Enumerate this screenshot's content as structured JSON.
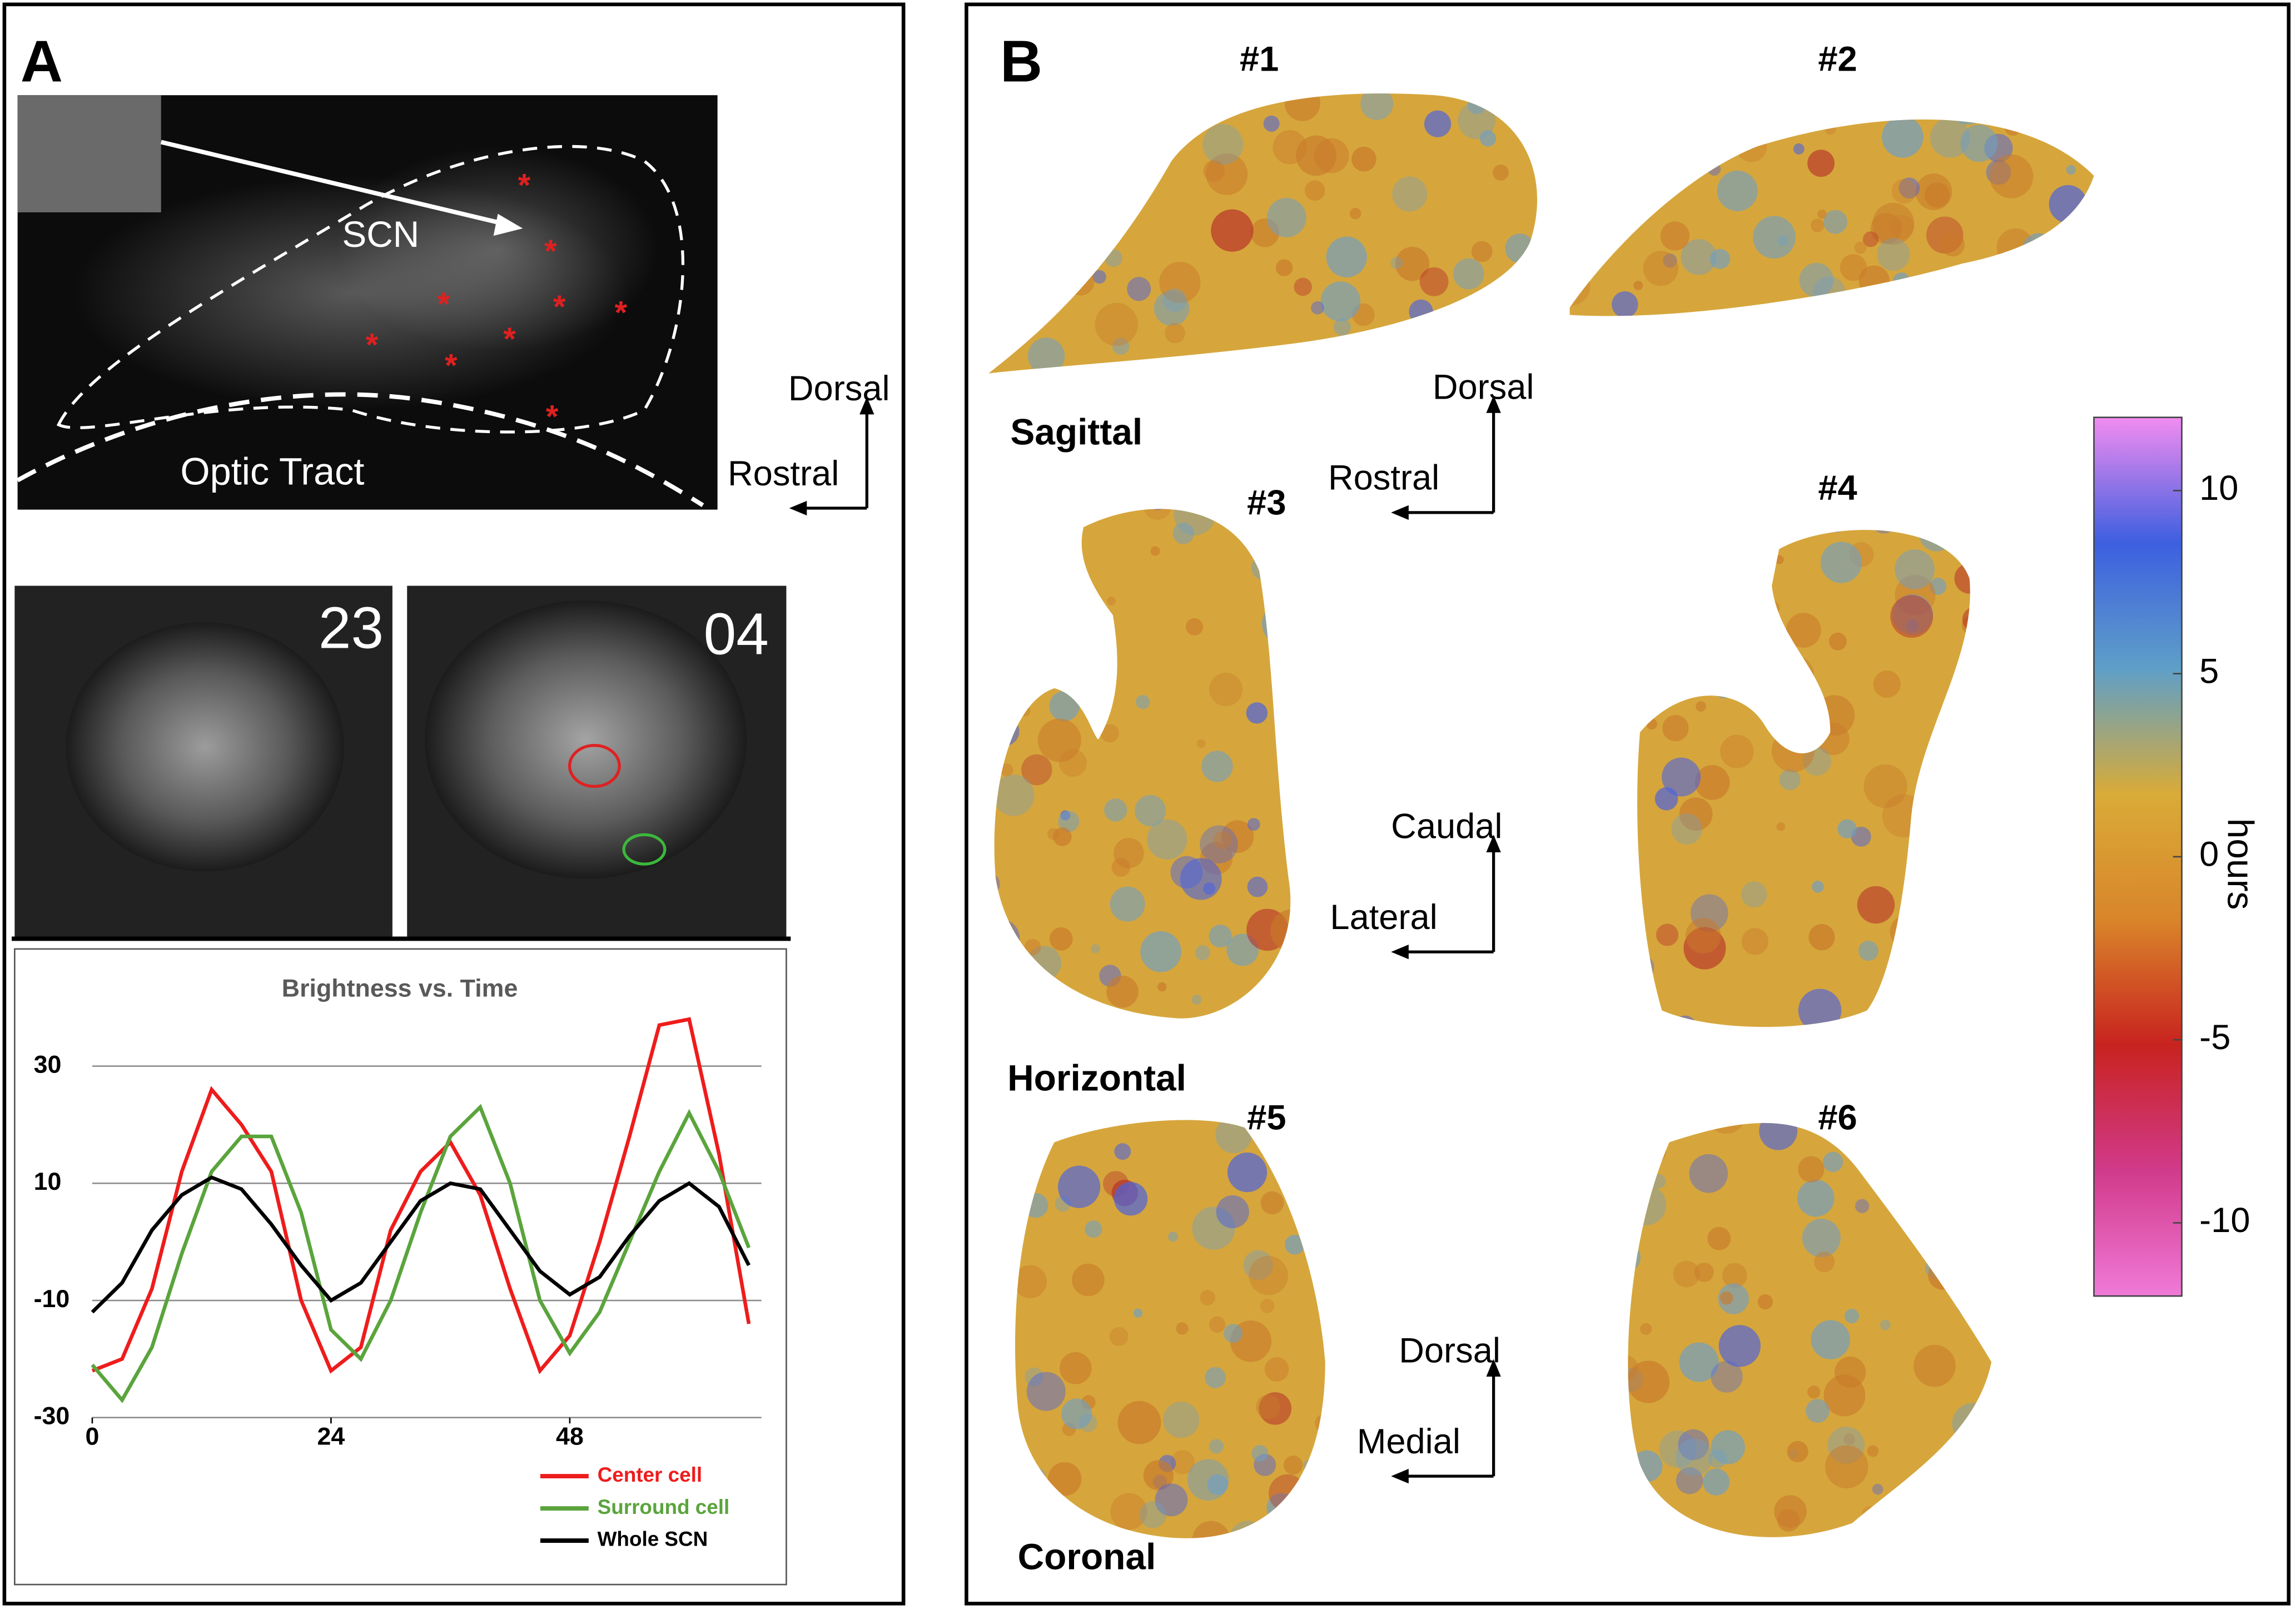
{
  "panel_a": {
    "label": "A",
    "image_labels": {
      "region": "SCN",
      "tract": "Optic Tract",
      "up": "Dorsal",
      "left": "Rostral"
    },
    "frames": [
      "23",
      "04"
    ]
  },
  "panel_b": {
    "label": "B",
    "maps": [
      "#1",
      "#2",
      "#3",
      "#4",
      "#5",
      "#6"
    ],
    "planes": [
      "Sagittal",
      "Horizontal",
      "Coronal"
    ],
    "orientations": [
      {
        "up": "Dorsal",
        "left": "Rostral"
      },
      {
        "up": "Caudal",
        "left": "Lateral"
      },
      {
        "up": "Dorsal",
        "left": "Medial"
      }
    ]
  },
  "chart_data": [
    {
      "type": "line",
      "title": "Brightness vs. Time",
      "x": [
        0,
        3,
        6,
        9,
        12,
        15,
        18,
        21,
        24,
        27,
        30,
        33,
        36,
        39,
        42,
        45,
        48,
        51,
        54,
        57,
        60,
        63,
        66
      ],
      "xlim": [
        0,
        68
      ],
      "xticks": [
        0,
        24,
        48
      ],
      "ylim": [
        -30,
        40
      ],
      "yticks": [
        -30,
        -10,
        10,
        30
      ],
      "grid": true,
      "legend": "bottom-right",
      "series": [
        {
          "name": "Center cell",
          "color": "#ee1c1c",
          "values": [
            -22,
            -20,
            -8,
            12,
            26,
            20,
            12,
            -10,
            -22,
            -18,
            2,
            12,
            17,
            8,
            -8,
            -22,
            -16,
            0,
            18,
            37,
            38,
            15,
            -14
          ]
        },
        {
          "name": "Surround cell",
          "color": "#5aa43c",
          "values": [
            -21,
            -27,
            -18,
            -2,
            12,
            18,
            18,
            5,
            -15,
            -20,
            -10,
            5,
            18,
            23,
            10,
            -10,
            -19,
            -12,
            0,
            12,
            22,
            12,
            -1
          ]
        },
        {
          "name": "Whole SCN",
          "color": "#000000",
          "values": [
            -12,
            -7,
            2,
            8,
            11,
            9,
            3,
            -4,
            -10,
            -7,
            0,
            7,
            10,
            9,
            2,
            -5,
            -9,
            -6,
            1,
            7,
            10,
            6,
            -4
          ]
        }
      ]
    },
    {
      "type": "colorbar",
      "label": "hours",
      "ylim": [
        -12,
        12
      ],
      "yticks": [
        -10,
        -5,
        0,
        5,
        10
      ],
      "colors": [
        "#f07ad8",
        "#d13a8a",
        "#c8231f",
        "#d9852a",
        "#d9ab38",
        "#5e9fc8",
        "#3d5fe0",
        "#f28cf0"
      ]
    }
  ]
}
